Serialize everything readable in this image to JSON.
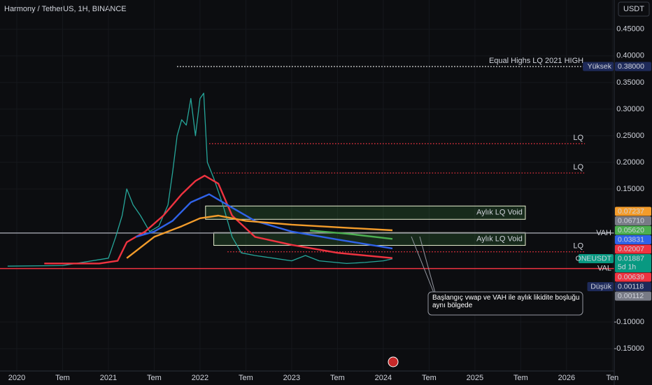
{
  "chart_data": {
    "type": "line",
    "title": "Harmony / TetherUS, 1H, BINANCE",
    "currency": "USDT",
    "xlim": [
      2019.817,
      2026.52
    ],
    "ylim": [
      -0.192,
      0.505
    ],
    "xticks": [
      2020,
      {
        "value": 2020.5,
        "label": "Tem"
      },
      2021,
      {
        "value": 2021.5,
        "label": "Tem"
      },
      2022,
      {
        "value": 2022.5,
        "label": "Tem"
      },
      2023,
      {
        "value": 2023.5,
        "label": "Tem"
      },
      2024,
      {
        "value": 2024.5,
        "label": "Tem"
      },
      2025,
      {
        "value": 2025.5,
        "label": "Tem"
      },
      2026,
      {
        "value": 2026.5,
        "label": "Ten"
      }
    ],
    "yticks": [
      {
        "value": 0.45,
        "label": "0.45000"
      },
      {
        "value": 0.4,
        "label": "0.40000"
      },
      {
        "value": 0.35,
        "label": "0.35000"
      },
      {
        "value": 0.3,
        "label": "0.30000"
      },
      {
        "value": 0.25,
        "label": "0.25000"
      },
      {
        "value": 0.2,
        "label": "0.20000"
      },
      {
        "value": 0.15,
        "label": "0.15000"
      },
      {
        "value": -0.1,
        "label": "-0.10000"
      },
      {
        "value": -0.15,
        "label": "-0.15000"
      }
    ],
    "series": [
      {
        "color": "#26a69a",
        "x": [
          2019.9,
          2020.5,
          2021.0,
          2021.08,
          2021.15,
          2021.2,
          2021.27,
          2021.35,
          2021.45,
          2021.55,
          2021.65,
          2021.7,
          2021.75,
          2021.8,
          2021.85,
          2021.9,
          2021.95,
          2022.0,
          2022.04,
          2022.08,
          2022.15,
          2022.25,
          2022.35,
          2022.45,
          2022.6,
          2022.8,
          2023.0,
          2023.15,
          2023.3,
          2023.6,
          2023.8,
          2024.0,
          2024.1
        ],
        "values": [
          0.005,
          0.006,
          0.02,
          0.06,
          0.1,
          0.15,
          0.12,
          0.1,
          0.07,
          0.08,
          0.12,
          0.18,
          0.25,
          0.28,
          0.27,
          0.32,
          0.25,
          0.32,
          0.33,
          0.2,
          0.17,
          0.12,
          0.06,
          0.03,
          0.025,
          0.02,
          0.015,
          0.025,
          0.015,
          0.01,
          0.012,
          0.015,
          0.01887
        ]
      },
      {
        "color": "#ef3340",
        "x": [
          2020.3,
          2020.9,
          2021.1,
          2021.2,
          2021.4,
          2021.6,
          2021.8,
          2021.95,
          2022.05,
          2022.2,
          2022.35,
          2022.6,
          2023.0,
          2023.5,
          2024.1
        ],
        "values": [
          0.01,
          0.01,
          0.015,
          0.05,
          0.07,
          0.1,
          0.14,
          0.165,
          0.175,
          0.16,
          0.1,
          0.06,
          0.045,
          0.03,
          0.02007
        ]
      },
      {
        "color": "#2f62e8",
        "x": [
          2021.3,
          2021.5,
          2021.7,
          2021.9,
          2022.1,
          2022.3,
          2022.6,
          2023.0,
          2023.5,
          2024.1
        ],
        "values": [
          0.06,
          0.07,
          0.09,
          0.125,
          0.14,
          0.12,
          0.09,
          0.07,
          0.055,
          0.03831
        ]
      },
      {
        "color": "#f39c2b",
        "x": [
          2021.2,
          2021.5,
          2021.8,
          2022.0,
          2022.2,
          2022.5,
          2023.0,
          2023.5,
          2024.1
        ],
        "values": [
          0.02,
          0.06,
          0.08,
          0.095,
          0.1,
          0.09,
          0.083,
          0.078,
          0.07237
        ]
      },
      {
        "color": "#4caf50",
        "x": [
          2023.2,
          2023.6,
          2024.1
        ],
        "values": [
          0.072,
          0.066,
          0.0562
        ]
      }
    ],
    "levels": [
      {
        "label": "Equal Highs LQ 2021 HIGH",
        "value": 0.38,
        "x": [
          2021.75,
          2026.2
        ],
        "color": "#ffffff"
      },
      {
        "label": "LQ",
        "value": 0.235,
        "x": [
          2022.1,
          2026.2
        ],
        "color": "#ef3340"
      },
      {
        "label": "LQ",
        "value": 0.18,
        "x": [
          2022.15,
          2026.2
        ],
        "color": "#ef3340"
      },
      {
        "label": "LQ",
        "value": 0.032,
        "x": [
          2022.3,
          2026.2
        ],
        "color": "#ef3340"
      }
    ],
    "zones": [
      {
        "label": "Aylık LQ Void",
        "range": [
          0.093,
          0.118
        ],
        "x": [
          2022.06,
          2025.55
        ]
      },
      {
        "label": "Aylık LQ Void",
        "range": [
          0.044,
          0.068
        ],
        "x": [
          2022.15,
          2025.55
        ]
      }
    ],
    "profile_lines": [
      {
        "label": "VAH",
        "value": 0.0672,
        "color": "#9598a1"
      },
      {
        "label": "VAL",
        "value": 0.0005,
        "color": "#ef3340"
      }
    ],
    "annotation": "Başlangıç vwap ve VAH ile aylık likidite boşluğu aynı bölgede",
    "price_tags": [
      {
        "name": "Yüksek",
        "value": 0.38,
        "label": "0.38000",
        "color": "#1e2a5a"
      },
      {
        "value": 0.07237,
        "label": "0.07237",
        "color": "#f39c2b"
      },
      {
        "value": 0.0671,
        "label": "0.06710",
        "color": "#787b86"
      },
      {
        "value": 0.0562,
        "label": "0.05620",
        "color": "#4caf50"
      },
      {
        "value": 0.03831,
        "label": "0.03831",
        "color": "#2f62e8"
      },
      {
        "value": 0.02007,
        "label": "0.02007",
        "color": "#ef3340"
      },
      {
        "name": "ONEUSDT",
        "value": 0.01887,
        "label": "0.01887",
        "sub": "5d 1h",
        "color": "#089981"
      },
      {
        "value": 0.00639,
        "label": "0.00639",
        "color": "#ef3340"
      },
      {
        "name": "Düşük",
        "value": 0.00118,
        "label": "0.00118",
        "color": "#1e2a5a"
      },
      {
        "value": 0.00112,
        "label": "0.00112",
        "color": "#787b86"
      }
    ]
  }
}
